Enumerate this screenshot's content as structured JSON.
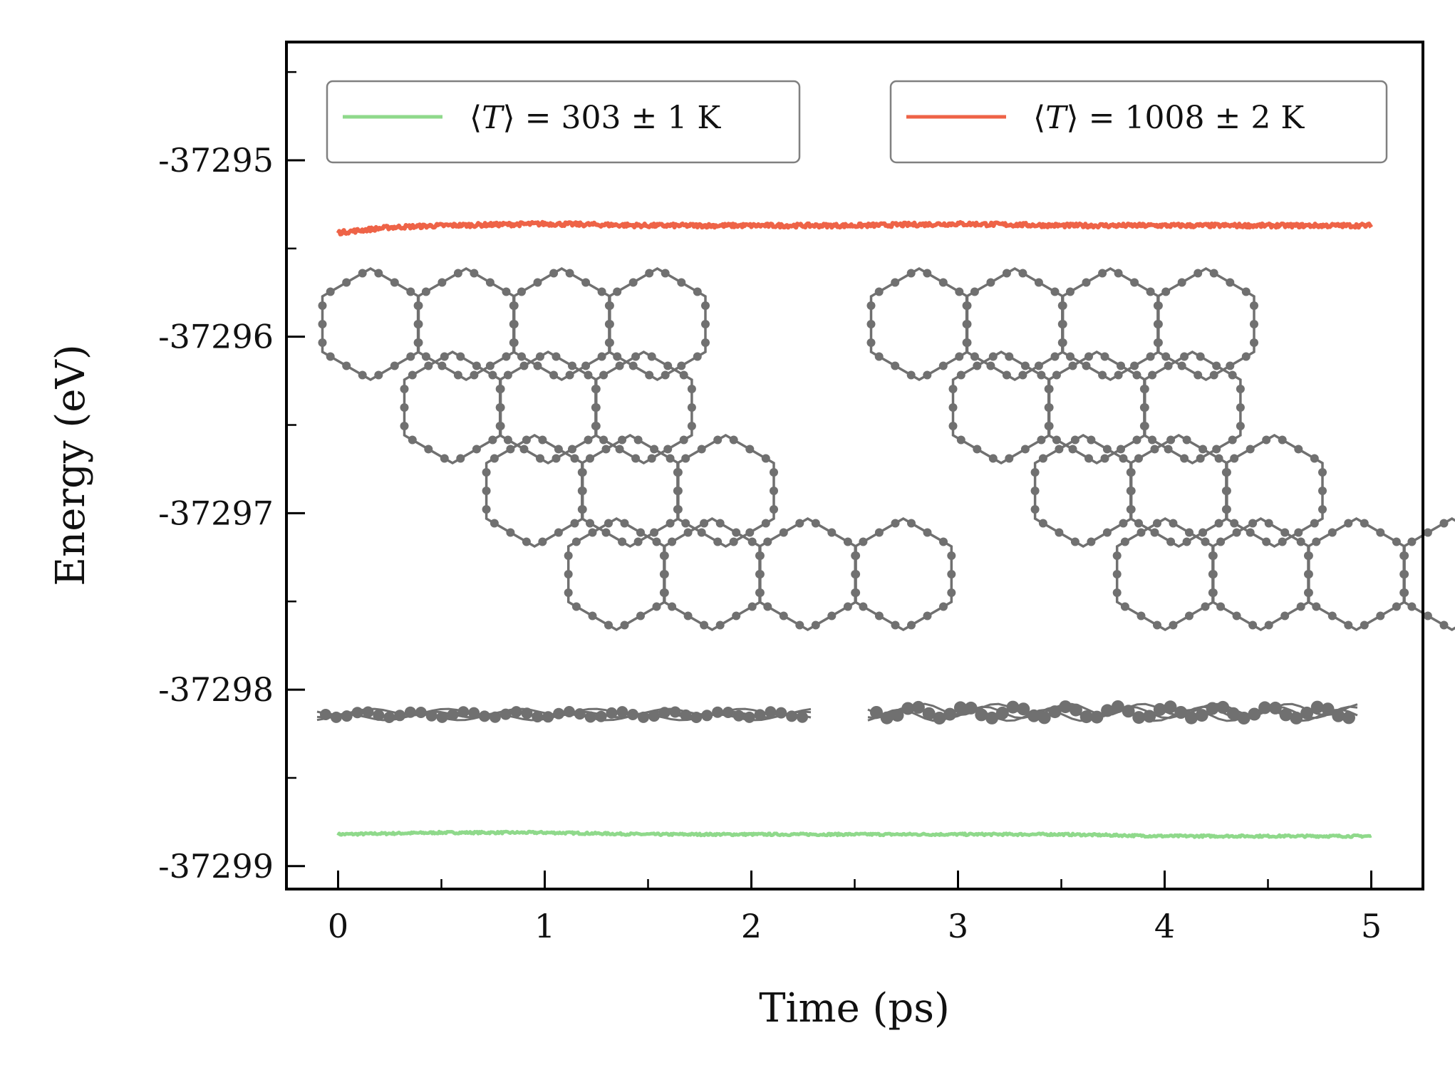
{
  "chart_data": {
    "type": "line",
    "xlabel": "Time (ps)",
    "ylabel": "Energy (eV)",
    "xlim": [
      -0.25,
      5.25
    ],
    "ylim": [
      -37299.13,
      -37294.33
    ],
    "x_ticks": [
      "0",
      "1",
      "2",
      "3",
      "4",
      "5"
    ],
    "x_tick_values": [
      0,
      1,
      2,
      3,
      4,
      5
    ],
    "y_ticks": [
      "-37295",
      "-37296",
      "-37297",
      "-37298",
      "-37299"
    ],
    "y_tick_values": [
      -37295,
      -37296,
      -37297,
      -37298,
      -37299
    ],
    "grid": false,
    "legend_placement": "top (two boxes, upper-left and upper-right)",
    "series": [
      {
        "legend_lhs": "T",
        "legend_rhs": " = 303 ± 1 K",
        "color": "#8fd98b",
        "x": [
          0,
          0.5,
          1,
          1.5,
          2,
          2.5,
          3,
          3.5,
          4,
          4.5,
          5
        ],
        "values": [
          -37298.82,
          -37298.81,
          -37298.81,
          -37298.82,
          -37298.82,
          -37298.82,
          -37298.82,
          -37298.82,
          -37298.83,
          -37298.83,
          -37298.83
        ]
      },
      {
        "legend_lhs": "T",
        "legend_rhs": " = 1008 ± 2 K",
        "color": "#ee6347",
        "x": [
          0,
          0.25,
          0.5,
          1,
          1.5,
          2,
          2.5,
          3,
          3.5,
          4,
          4.5,
          5
        ],
        "values": [
          -37295.41,
          -37295.38,
          -37295.37,
          -37295.36,
          -37295.37,
          -37295.37,
          -37295.37,
          -37295.36,
          -37295.37,
          -37295.37,
          -37295.37,
          -37295.37
        ]
      }
    ]
  },
  "insets": {
    "description_icons": [
      "graphene-lattice-top-view",
      "graphene-lattice-side-view"
    ],
    "atom_color": "#707070"
  }
}
